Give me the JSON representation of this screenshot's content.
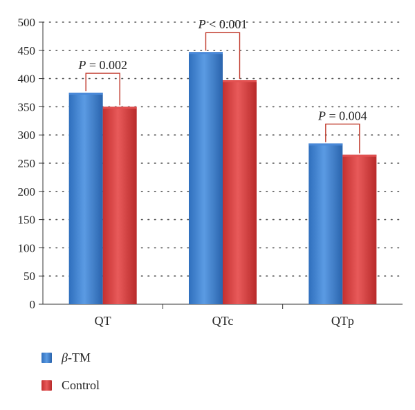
{
  "chart_data": {
    "type": "bar",
    "categories": [
      "QT",
      "QTc",
      "QTp"
    ],
    "series": [
      {
        "name": "β-TM",
        "name_prefix": "β",
        "name_suffix": "-TM",
        "values": [
          375,
          447,
          285
        ],
        "color": "#3b7fd0"
      },
      {
        "name": "Control",
        "values": [
          350,
          397,
          265
        ],
        "color": "#d83b3b"
      }
    ],
    "ylim": [
      0,
      500
    ],
    "yticks": [
      0,
      50,
      100,
      150,
      200,
      250,
      300,
      350,
      400,
      450,
      500
    ],
    "grid": "dotted horizontal",
    "legend_position": "bottom-left",
    "annotations": [
      {
        "category": "QT",
        "p_symbol": "P",
        "text": " = 0.002"
      },
      {
        "category": "QTc",
        "p_symbol": "P",
        "text": " < 0.001"
      },
      {
        "category": "QTp",
        "p_symbol": "P",
        "text": " = 0.004"
      }
    ],
    "xlabel": "",
    "ylabel": ""
  }
}
